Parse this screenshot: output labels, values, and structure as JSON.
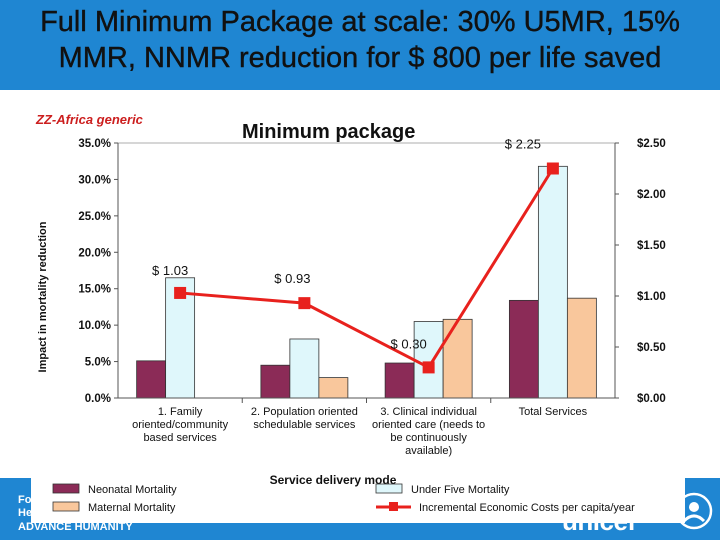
{
  "slide": {
    "title": "Full Minimum Package at scale: 30% U5MR, 15% MMR, NNMR reduction  for $ 800 per life saved"
  },
  "footer": {
    "line1": "Fo",
    "line2": "He",
    "line3": "ADVANCE HUMANITY",
    "logo_text": "unicef",
    "brand_color": "#1f86d2"
  },
  "chart_data": {
    "type": "bar",
    "corner_label": "ZZ-Africa generic",
    "title": "Minimum package",
    "xlabel": "Service delivery mode",
    "ylabel": "Impact in mortality reduction",
    "ylim": [
      0,
      0.35
    ],
    "y_ticks": [
      "0.0%",
      "5.0%",
      "10.0%",
      "15.0%",
      "20.0%",
      "25.0%",
      "30.0%",
      "35.0%"
    ],
    "y2lim": [
      0,
      2.5
    ],
    "y2_ticks": [
      "$0.00",
      "$0.50",
      "$1.00",
      "$1.50",
      "$2.00",
      "$2.50"
    ],
    "categories": [
      [
        "1. Family",
        "oriented/community",
        "based services"
      ],
      [
        "2. Population oriented",
        "schedulable services"
      ],
      [
        "3.  Clinical individual",
        "oriented care (needs to",
        "be continuously",
        "available)"
      ],
      [
        "Total Services"
      ]
    ],
    "series": [
      {
        "name": "Neonatal Mortality",
        "color": "#8b2b57",
        "values": [
          0.051,
          0.045,
          0.048,
          0.134
        ]
      },
      {
        "name": "Under Five Mortality",
        "color": "#dff7fb",
        "values": [
          0.165,
          0.081,
          0.105,
          0.318
        ]
      },
      {
        "name": "Maternal Mortality",
        "color": "#f9c79c",
        "values": [
          null,
          0.028,
          0.108,
          0.137
        ]
      }
    ],
    "line_series": {
      "name": "Incremental Economic Costs per capita/year",
      "color": "#e8211d",
      "values": [
        1.03,
        0.93,
        0.3,
        2.25
      ],
      "labels": [
        "$ 1.03",
        "$ 0.93",
        "$ 0.30",
        "$ 2.25"
      ]
    },
    "legend_position": "bottom"
  }
}
